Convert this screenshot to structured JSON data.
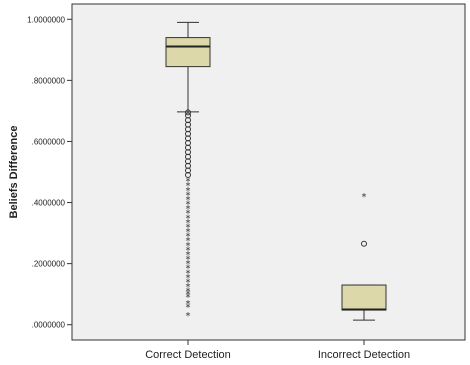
{
  "chart_data": {
    "type": "box",
    "title": "",
    "xlabel": "",
    "ylabel": "Beliefs Difference",
    "ylim": [
      -0.05,
      1.05
    ],
    "yticks": [
      0.0,
      0.2,
      0.4,
      0.6,
      0.8,
      1.0
    ],
    "ytick_labels": [
      ".0000000",
      ".2000000",
      ".4000000",
      ".6000000",
      ".8000000",
      "1.0000000"
    ],
    "grid": false,
    "colors": {
      "box_fill": "#ddd8a9",
      "plot_background": "#f0f0f0",
      "border": "#333333"
    },
    "categories": [
      "Correct Detection",
      "Incorrect Detection"
    ],
    "boxes": [
      {
        "category": "Correct Detection",
        "whisker_low": 0.697,
        "q1": 0.845,
        "median": 0.911,
        "q3": 0.94,
        "whisker_high": 0.99,
        "outliers_circle": [
          0.695,
          0.685,
          0.67,
          0.655,
          0.64,
          0.625,
          0.61,
          0.595,
          0.58,
          0.565,
          0.55,
          0.535,
          0.52,
          0.505,
          0.49
        ],
        "outliers_star": [
          0.47,
          0.455,
          0.44,
          0.425,
          0.41,
          0.395,
          0.38,
          0.365,
          0.35,
          0.335,
          0.32,
          0.305,
          0.29,
          0.275,
          0.26,
          0.245,
          0.23,
          0.215,
          0.2,
          0.185,
          0.17,
          0.155,
          0.14,
          0.125,
          0.11,
          0.1,
          0.09,
          0.07,
          0.058,
          0.03
        ]
      },
      {
        "category": "Incorrect Detection",
        "whisker_low": 0.015,
        "q1": 0.048,
        "median": 0.05,
        "q3": 0.13,
        "whisker_high": 0.13,
        "outliers_circle": [
          0.265
        ],
        "outliers_star": [
          0.42
        ]
      }
    ]
  }
}
